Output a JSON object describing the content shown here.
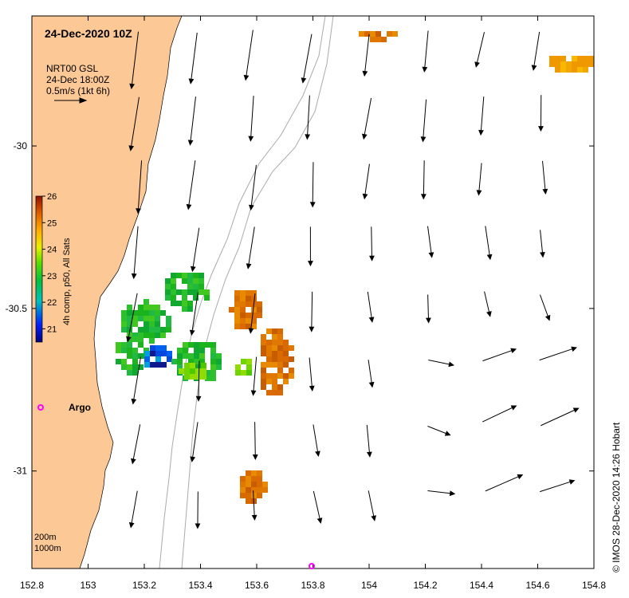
{
  "map": {
    "title": "24-Dec-2020 10Z",
    "legend_lines": [
      "NRT00 GSL",
      "24-Dec 18:00Z",
      "0.5m/s (1kt 6h)"
    ],
    "colorbar_label": "4h comp, p50, All Sats",
    "colorbar_ticks": [
      "21",
      "22",
      "23",
      "24",
      "25",
      "26"
    ],
    "colorbar_range": [
      20.5,
      26
    ],
    "depth_contours": [
      "200m",
      "1000m"
    ],
    "credit": "© IMOS 28-Dec-2020 14:26 Hobart",
    "argo_label": "Argo",
    "lon_ticks": [
      "152.8",
      "153",
      "153.2",
      "153.4",
      "153.6",
      "153.8",
      "154",
      "154.2",
      "154.4",
      "154.6",
      "154.8"
    ],
    "lat_ticks": [
      "-30",
      "-30.5",
      "-31"
    ],
    "lon_range": [
      152.8,
      154.8
    ],
    "lat_range": [
      -29.6,
      -31.3
    ],
    "colors": {
      "land": "#fcc896",
      "argo": "#ff00ff",
      "contour": "#aaaaaa"
    }
  }
}
